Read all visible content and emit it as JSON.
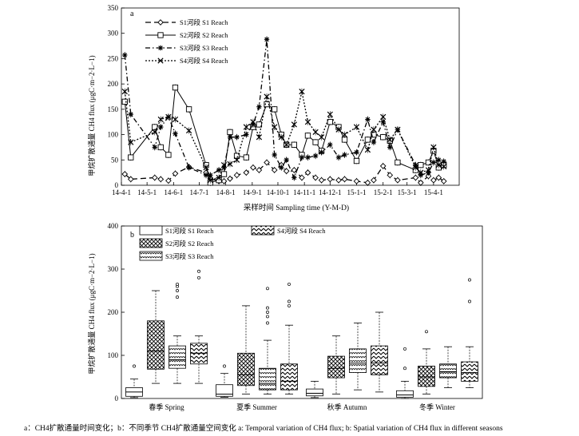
{
  "chart_data": [
    {
      "panel": "a",
      "type": "line",
      "ylabel": "甲烷扩散通量 CH4 flux (μgC·m−2·L−1)",
      "xlabel": "采样时间 Sampling time (Y-M-D)",
      "ylim": [
        0,
        350
      ],
      "yticks": [
        0,
        50,
        100,
        150,
        200,
        250,
        300,
        350
      ],
      "xticks": [
        "14-4-1",
        "14-5-1",
        "14-6-1",
        "14-7-1",
        "14-8-1",
        "14-9-1",
        "14-10-1",
        "14-11-1",
        "14-12-1",
        "15-1-1",
        "15-2-1",
        "15-3-1",
        "15-4-1"
      ],
      "grid": false,
      "legend_position": "top-left",
      "series": [
        {
          "name": "S1河段 S1 Reach",
          "marker": "diamond",
          "dash": "long-dash",
          "x": [
            "2014-04-05",
            "2014-04-12",
            "2014-05-10",
            "2014-05-17",
            "2014-05-26",
            "2014-06-03",
            "2014-06-19",
            "2014-07-09",
            "2014-07-14",
            "2014-07-24",
            "2014-07-30",
            "2014-08-06",
            "2014-08-14",
            "2014-08-25",
            "2014-09-02",
            "2014-09-09",
            "2014-09-18",
            "2014-09-27",
            "2014-10-05",
            "2014-10-11",
            "2014-10-20",
            "2014-10-29",
            "2014-11-05",
            "2014-11-14",
            "2014-11-21",
            "2014-12-01",
            "2014-12-11",
            "2014-12-18",
            "2015-01-01",
            "2015-01-14",
            "2015-01-21",
            "2015-02-01",
            "2015-02-09",
            "2015-02-18",
            "2015-03-11",
            "2015-03-17",
            "2015-03-26",
            "2015-04-01",
            "2015-04-07",
            "2015-04-13"
          ],
          "values": [
            22,
            12,
            15,
            12,
            9,
            23,
            36,
            25,
            13,
            8,
            8,
            13,
            20,
            25,
            35,
            30,
            45,
            30,
            40,
            28,
            30,
            15,
            25,
            15,
            10,
            12,
            10,
            12,
            8,
            5,
            10,
            38,
            20,
            10,
            15,
            5,
            18,
            10,
            15,
            8
          ]
        },
        {
          "name": "S2河段 S2 Reach",
          "marker": "square",
          "dash": "solid",
          "x": [
            "2014-04-05",
            "2014-04-12",
            "2014-05-10",
            "2014-05-17",
            "2014-05-26",
            "2014-06-03",
            "2014-06-19",
            "2014-07-09",
            "2014-07-14",
            "2014-07-24",
            "2014-07-30",
            "2014-08-06",
            "2014-08-14",
            "2014-08-25",
            "2014-09-02",
            "2014-09-09",
            "2014-09-18",
            "2014-09-27",
            "2014-10-05",
            "2014-10-11",
            "2014-10-20",
            "2014-10-29",
            "2014-11-05",
            "2014-11-14",
            "2014-11-21",
            "2014-12-01",
            "2014-12-11",
            "2014-12-18",
            "2015-01-01",
            "2015-01-14",
            "2015-01-21",
            "2015-02-01",
            "2015-02-09",
            "2015-02-18",
            "2015-03-11",
            "2015-03-17",
            "2015-03-26",
            "2015-04-01",
            "2015-04-07",
            "2015-04-13"
          ],
          "values": [
            165,
            55,
            115,
            75,
            60,
            193,
            150,
            40,
            5,
            10,
            22,
            105,
            58,
            55,
            115,
            120,
            160,
            150,
            100,
            80,
            80,
            60,
            98,
            85,
            68,
            125,
            115,
            90,
            48,
            90,
            100,
            95,
            88,
            45,
            30,
            40,
            45,
            68,
            35,
            40
          ]
        },
        {
          "name": "S3河段 S3 Reach",
          "marker": "star",
          "dash": "dash-dot",
          "x": [
            "2014-04-05",
            "2014-04-12",
            "2014-05-10",
            "2014-05-17",
            "2014-05-26",
            "2014-06-03",
            "2014-06-19",
            "2014-07-09",
            "2014-07-14",
            "2014-07-24",
            "2014-07-30",
            "2014-08-06",
            "2014-08-14",
            "2014-08-25",
            "2014-09-02",
            "2014-09-09",
            "2014-09-18",
            "2014-09-27",
            "2014-10-05",
            "2014-10-11",
            "2014-10-20",
            "2014-10-29",
            "2014-11-05",
            "2014-11-14",
            "2014-11-21",
            "2014-12-01",
            "2014-12-11",
            "2014-12-18",
            "2015-01-01",
            "2015-01-14",
            "2015-01-21",
            "2015-02-01",
            "2015-02-09",
            "2015-02-18",
            "2015-03-11",
            "2015-03-17",
            "2015-03-26",
            "2015-04-01",
            "2015-04-07",
            "2015-04-13"
          ],
          "values": [
            257,
            140,
            75,
            115,
            135,
            102,
            35,
            20,
            20,
            30,
            35,
            95,
            95,
            100,
            120,
            155,
            288,
            60,
            35,
            50,
            15,
            55,
            55,
            58,
            65,
            80,
            55,
            60,
            65,
            130,
            85,
            125,
            75,
            110,
            40,
            20,
            25,
            45,
            50,
            47
          ]
        },
        {
          "name": "S4河段 S4 Reach",
          "marker": "x",
          "dash": "dotted",
          "x": [
            "2014-04-05",
            "2014-04-12",
            "2014-05-10",
            "2014-05-17",
            "2014-05-26",
            "2014-06-03",
            "2014-06-19",
            "2014-07-09",
            "2014-07-14",
            "2014-07-24",
            "2014-07-30",
            "2014-08-06",
            "2014-08-14",
            "2014-08-25",
            "2014-09-02",
            "2014-09-09",
            "2014-09-18",
            "2014-09-27",
            "2014-10-05",
            "2014-10-11",
            "2014-10-20",
            "2014-10-29",
            "2014-11-05",
            "2014-11-14",
            "2014-11-21",
            "2014-12-01",
            "2014-12-11",
            "2014-12-18",
            "2015-01-01",
            "2015-01-14",
            "2015-01-21",
            "2015-02-01",
            "2015-02-09",
            "2015-02-18",
            "2015-03-11",
            "2015-03-17",
            "2015-03-26",
            "2015-04-01",
            "2015-04-07",
            "2015-04-13"
          ],
          "values": [
            185,
            85,
            105,
            130,
            135,
            130,
            108,
            35,
            10,
            15,
            40,
            42,
            50,
            115,
            125,
            95,
            175,
            115,
            95,
            80,
            120,
            185,
            125,
            105,
            95,
            140,
            110,
            100,
            115,
            70,
            110,
            135,
            90,
            110,
            35,
            25,
            30,
            75,
            40,
            37
          ]
        }
      ]
    },
    {
      "panel": "b",
      "type": "box",
      "ylabel": "甲烷扩散通量 CH4 flux (μgC·m−2·L−1)",
      "ylim": [
        0,
        400
      ],
      "yticks": [
        0,
        100,
        200,
        300,
        400
      ],
      "categories": [
        "春季 Spring",
        "夏季 Summer",
        "秋季 Autumn",
        "冬季 Winter"
      ],
      "legend_position": "top-left",
      "series": [
        {
          "name": "S1河段 S1 Reach",
          "pattern": "blank",
          "boxes": [
            {
              "min": 2,
              "q1": 5,
              "median": 15,
              "q3": 25,
              "max": 45,
              "outliers": [
                75
              ]
            },
            {
              "min": 3,
              "q1": 5,
              "median": 10,
              "q3": 32,
              "max": 58,
              "outliers": [
                75
              ]
            },
            {
              "min": 2,
              "q1": 6,
              "median": 12,
              "q3": 22,
              "max": 40,
              "outliers": []
            },
            {
              "min": 0,
              "q1": 3,
              "median": 8,
              "q3": 18,
              "max": 40,
              "outliers": [
                70,
                115
              ]
            }
          ]
        },
        {
          "name": "S2河段 S2 Reach",
          "pattern": "diagonal-crosshatch",
          "boxes": [
            {
              "min": 35,
              "q1": 68,
              "median": 110,
              "q3": 180,
              "max": 250,
              "outliers": []
            },
            {
              "min": 10,
              "q1": 30,
              "median": 55,
              "q3": 105,
              "max": 215,
              "outliers": []
            },
            {
              "min": 10,
              "q1": 48,
              "median": 70,
              "q3": 98,
              "max": 145,
              "outliers": []
            },
            {
              "min": 10,
              "q1": 28,
              "median": 50,
              "q3": 75,
              "max": 115,
              "outliers": [
                155
              ]
            }
          ]
        },
        {
          "name": "S3河段 S3 Reach",
          "pattern": "scales",
          "boxes": [
            {
              "min": 35,
              "q1": 70,
              "median": 90,
              "q3": 122,
              "max": 145,
              "outliers": [
                235,
                250,
                260,
                265
              ]
            },
            {
              "min": 10,
              "q1": 20,
              "median": 35,
              "q3": 70,
              "max": 135,
              "outliers": [
                175,
                190,
                200,
                210,
                255
              ]
            },
            {
              "min": 20,
              "q1": 60,
              "median": 82,
              "q3": 115,
              "max": 175,
              "outliers": []
            },
            {
              "min": 25,
              "q1": 48,
              "median": 62,
              "q3": 80,
              "max": 120,
              "outliers": []
            }
          ]
        },
        {
          "name": "S4河段 S4 Reach",
          "pattern": "zigzag",
          "boxes": [
            {
              "min": 35,
              "q1": 80,
              "median": 105,
              "q3": 128,
              "max": 145,
              "outliers": [
                280,
                295
              ]
            },
            {
              "min": 10,
              "q1": 20,
              "median": 40,
              "q3": 80,
              "max": 170,
              "outliers": [
                215,
                225,
                265
              ]
            },
            {
              "min": 15,
              "q1": 55,
              "median": 82,
              "q3": 122,
              "max": 200,
              "outliers": []
            },
            {
              "min": 25,
              "q1": 40,
              "median": 60,
              "q3": 85,
              "max": 120,
              "outliers": [
                225,
                275
              ]
            }
          ]
        }
      ]
    }
  ],
  "caption": "a：CH4扩散通量时间变化；b：不同季节 CH4扩散通量空间变化    a: Temporal variation of CH4 flux; b: Spatial variation of CH4 flux in different seasons",
  "colors": {
    "ink": "#000000",
    "paper": "#ffffff"
  }
}
